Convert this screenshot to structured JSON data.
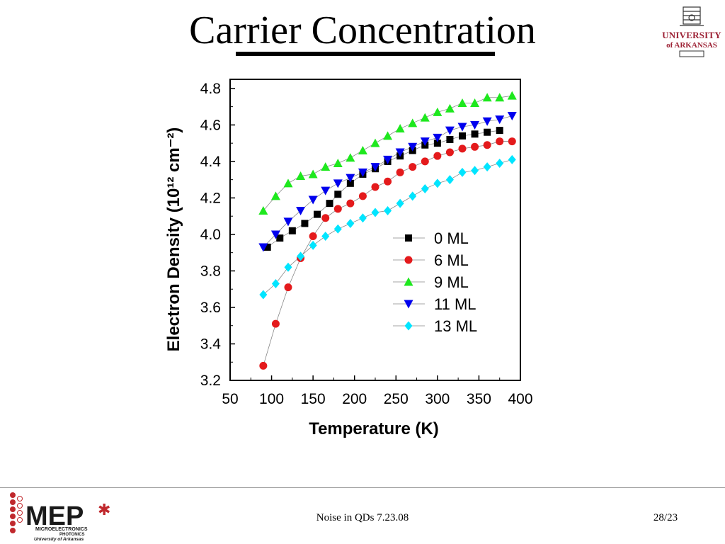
{
  "slide": {
    "title": "Carrier Concentration",
    "footer_center": "Noise in QDs 7.23.08",
    "page_number": "28/23"
  },
  "logos": {
    "university_line1": "UNIVERSITY",
    "university_line2": "of ARKANSAS",
    "mep_main": "MEP",
    "mep_sub1": "MICROELECTRONICS",
    "mep_sub2": "PHOTONICS",
    "mep_sub3": "University of Arkansas"
  },
  "chart_data": {
    "type": "scatter",
    "xlabel": "Temperature (K)",
    "ylabel": "Electron Density (10¹² cm⁻²)",
    "xlim": [
      50,
      400
    ],
    "ylim": [
      3.2,
      4.85
    ],
    "xticks": [
      50,
      100,
      150,
      200,
      250,
      300,
      350,
      400
    ],
    "yticks": [
      3.2,
      3.4,
      3.6,
      3.8,
      4.0,
      4.2,
      4.4,
      4.6,
      4.8
    ],
    "legend_position": "center-right",
    "grid": false,
    "series": [
      {
        "name": "0 ML",
        "marker": "square",
        "color": "#000000",
        "x": [
          95,
          110,
          125,
          140,
          155,
          170,
          180,
          195,
          210,
          225,
          240,
          255,
          270,
          285,
          300,
          315,
          330,
          345,
          360,
          375
        ],
        "y": [
          3.93,
          3.98,
          4.02,
          4.06,
          4.11,
          4.17,
          4.22,
          4.28,
          4.33,
          4.36,
          4.4,
          4.43,
          4.46,
          4.49,
          4.5,
          4.52,
          4.54,
          4.55,
          4.56,
          4.57
        ]
      },
      {
        "name": "6 ML",
        "marker": "circle",
        "color": "#e41a1c",
        "x": [
          90,
          105,
          120,
          135,
          150,
          165,
          180,
          195,
          210,
          225,
          240,
          255,
          270,
          285,
          300,
          315,
          330,
          345,
          360,
          375,
          390
        ],
        "y": [
          3.28,
          3.51,
          3.71,
          3.87,
          3.99,
          4.09,
          4.14,
          4.17,
          4.21,
          4.26,
          4.29,
          4.34,
          4.37,
          4.4,
          4.43,
          4.45,
          4.47,
          4.48,
          4.49,
          4.51,
          4.51
        ]
      },
      {
        "name": "9 ML",
        "marker": "triangle-up",
        "color": "#1ee81e",
        "x": [
          90,
          105,
          120,
          135,
          150,
          165,
          180,
          195,
          210,
          225,
          240,
          255,
          270,
          285,
          300,
          315,
          330,
          345,
          360,
          375,
          390
        ],
        "y": [
          4.13,
          4.21,
          4.28,
          4.32,
          4.33,
          4.37,
          4.39,
          4.42,
          4.46,
          4.5,
          4.54,
          4.58,
          4.61,
          4.64,
          4.67,
          4.69,
          4.72,
          4.72,
          4.75,
          4.75,
          4.76
        ]
      },
      {
        "name": "11 ML",
        "marker": "triangle-down",
        "color": "#0000ee",
        "x": [
          90,
          105,
          120,
          135,
          150,
          165,
          180,
          195,
          210,
          225,
          240,
          255,
          270,
          285,
          300,
          315,
          330,
          345,
          360,
          375,
          390
        ],
        "y": [
          3.93,
          4.0,
          4.07,
          4.13,
          4.19,
          4.24,
          4.28,
          4.31,
          4.34,
          4.37,
          4.41,
          4.45,
          4.48,
          4.51,
          4.53,
          4.57,
          4.59,
          4.6,
          4.62,
          4.63,
          4.65
        ]
      },
      {
        "name": "13 ML",
        "marker": "diamond",
        "color": "#00e5ff",
        "x": [
          90,
          105,
          120,
          135,
          150,
          165,
          180,
          195,
          210,
          225,
          240,
          255,
          270,
          285,
          300,
          315,
          330,
          345,
          360,
          375,
          390
        ],
        "y": [
          3.67,
          3.73,
          3.82,
          3.88,
          3.94,
          3.99,
          4.03,
          4.06,
          4.09,
          4.12,
          4.13,
          4.17,
          4.21,
          4.25,
          4.28,
          4.3,
          4.34,
          4.35,
          4.37,
          4.39,
          4.41
        ]
      }
    ]
  }
}
